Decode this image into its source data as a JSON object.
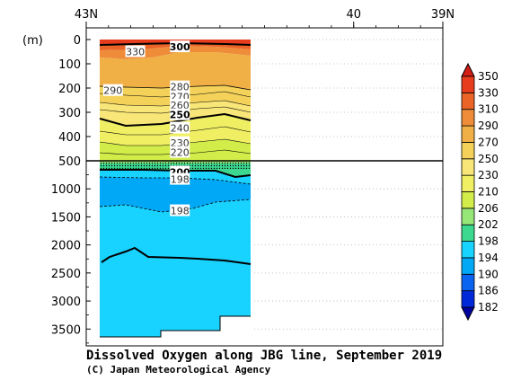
{
  "chart_data": {
    "type": "heatmap",
    "title": "Dissolved Oxygen along JBG line, September 2019",
    "credit": "(C) Japan Meteorological Agency",
    "ylabel": "(m)",
    "x_ticks": [
      {
        "value": 43,
        "label": "43N"
      },
      {
        "value": 40,
        "label": "40"
      },
      {
        "value": 39,
        "label": "39N"
      }
    ],
    "xlim": [
      43,
      39
    ],
    "upper_depth_ticks": [
      0,
      100,
      200,
      300,
      400,
      500
    ],
    "lower_depth_ticks": [
      1000,
      1500,
      2000,
      2500,
      3000,
      3500
    ],
    "upper_ylim": [
      0,
      500
    ],
    "lower_ylim": [
      500,
      3800
    ],
    "colorbar": {
      "levels": [
        182,
        186,
        190,
        194,
        198,
        202,
        206,
        210,
        230,
        250,
        270,
        290,
        310,
        330,
        350
      ],
      "colors": [
        "#0000a0",
        "#0028d8",
        "#0a64f0",
        "#00a8f5",
        "#18d2ff",
        "#3cd890",
        "#96e678",
        "#d2ec4a",
        "#f0ef64",
        "#f8e678",
        "#f4d25a",
        "#f0b046",
        "#ee8c3a",
        "#ea6428",
        "#e83c1e",
        "#d21e14"
      ]
    },
    "contour_labels": [
      {
        "lat": 42.45,
        "depth": 50,
        "value": "330"
      },
      {
        "lat": 41.95,
        "depth": 30,
        "value": "300",
        "bold": true
      },
      {
        "lat": 42.7,
        "depth": 210,
        "value": "290"
      },
      {
        "lat": 41.95,
        "depth": 195,
        "value": "280"
      },
      {
        "lat": 41.95,
        "depth": 235,
        "value": "270"
      },
      {
        "lat": 41.95,
        "depth": 270,
        "value": "260"
      },
      {
        "lat": 41.95,
        "depth": 310,
        "value": "250",
        "bold": true
      },
      {
        "lat": 41.95,
        "depth": 365,
        "value": "240"
      },
      {
        "lat": 41.95,
        "depth": 425,
        "value": "230"
      },
      {
        "lat": 41.95,
        "depth": 465,
        "value": "220"
      },
      {
        "lat": 41.95,
        "depth": 700,
        "value": "200",
        "bold": true
      },
      {
        "lat": 41.95,
        "depth": 830,
        "value": "198"
      },
      {
        "lat": 41.95,
        "depth": 1390,
        "value": "198"
      }
    ]
  }
}
